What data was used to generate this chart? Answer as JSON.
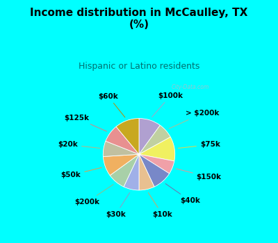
{
  "title": "Income distribution in McCaulley, TX\n(%)",
  "subtitle": "Hispanic or Latino residents",
  "bg_color": "#00ffff",
  "chart_bg": "#d8f0e4",
  "labels": [
    "$100k",
    "> $200k",
    "$75k",
    "$150k",
    "$40k",
    "$10k",
    "$30k",
    "$200k",
    "$50k",
    "$20k",
    "$125k",
    "$60k"
  ],
  "values": [
    10,
    7,
    11,
    6,
    9,
    7,
    7,
    8,
    9,
    7,
    8,
    11
  ],
  "colors": [
    "#b0a0d0",
    "#c0d0a0",
    "#f0f060",
    "#f0a0a8",
    "#7888c8",
    "#e8c090",
    "#a0b0e8",
    "#a8d0a8",
    "#f0b060",
    "#c0c0a0",
    "#e89090",
    "#c8a820"
  ],
  "line_colors": {
    "$100k": "#a0a8c8",
    "> $200k": "#a8c098",
    "$75k": "#d8d850",
    "$150k": "#e09898",
    "$40k": "#6878b0",
    "$10k": "#c8a868",
    "$30k": "#88a0c8",
    "$200k": "#88c090",
    "$50k": "#e0a050",
    "$20k": "#b0b888",
    "$125k": "#d08888",
    "$60k": "#b09010"
  },
  "watermark": "City-Data.com",
  "title_fontsize": 11,
  "subtitle_fontsize": 9,
  "label_fontsize": 7.5
}
